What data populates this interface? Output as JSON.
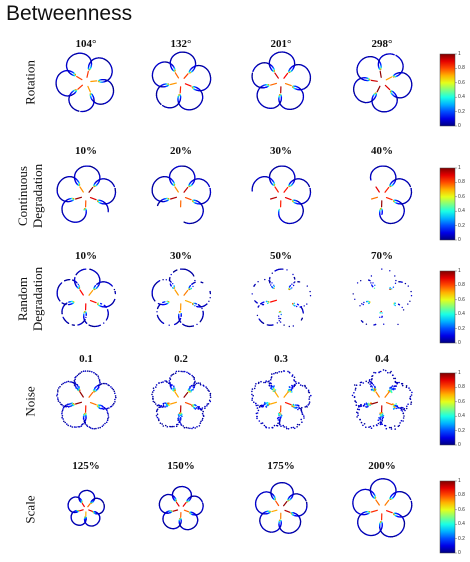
{
  "title": "Betweenness",
  "rows": [
    {
      "label_lines": [
        "Rotation"
      ],
      "columns": [
        "104°",
        "132°",
        "201°",
        "298°"
      ],
      "variant": "rotation",
      "params": [
        104,
        132,
        201,
        298
      ]
    },
    {
      "label_lines": [
        "Continuous",
        "Degradation"
      ],
      "columns": [
        "10%",
        "20%",
        "30%",
        "40%"
      ],
      "variant": "continuous",
      "params": [
        0.1,
        0.2,
        0.3,
        0.4
      ]
    },
    {
      "label_lines": [
        "Random",
        "Degradation"
      ],
      "columns": [
        "10%",
        "30%",
        "50%",
        "70%"
      ],
      "variant": "random",
      "params": [
        0.1,
        0.3,
        0.5,
        0.7
      ]
    },
    {
      "label_lines": [
        "Noise"
      ],
      "columns": [
        "0.1",
        "0.2",
        "0.3",
        "0.4"
      ],
      "variant": "noise",
      "params": [
        0.1,
        0.2,
        0.3,
        0.4
      ]
    },
    {
      "label_lines": [
        "Scale"
      ],
      "columns": [
        "125%",
        "150%",
        "175%",
        "200%"
      ],
      "variant": "scale",
      "params": [
        1.25,
        1.5,
        1.75,
        2.0
      ]
    }
  ],
  "colorbar": {
    "ticks": [
      "1",
      "0.8",
      "0.6",
      "0.4",
      "0.2",
      "0"
    ],
    "colormap": "jet"
  }
}
